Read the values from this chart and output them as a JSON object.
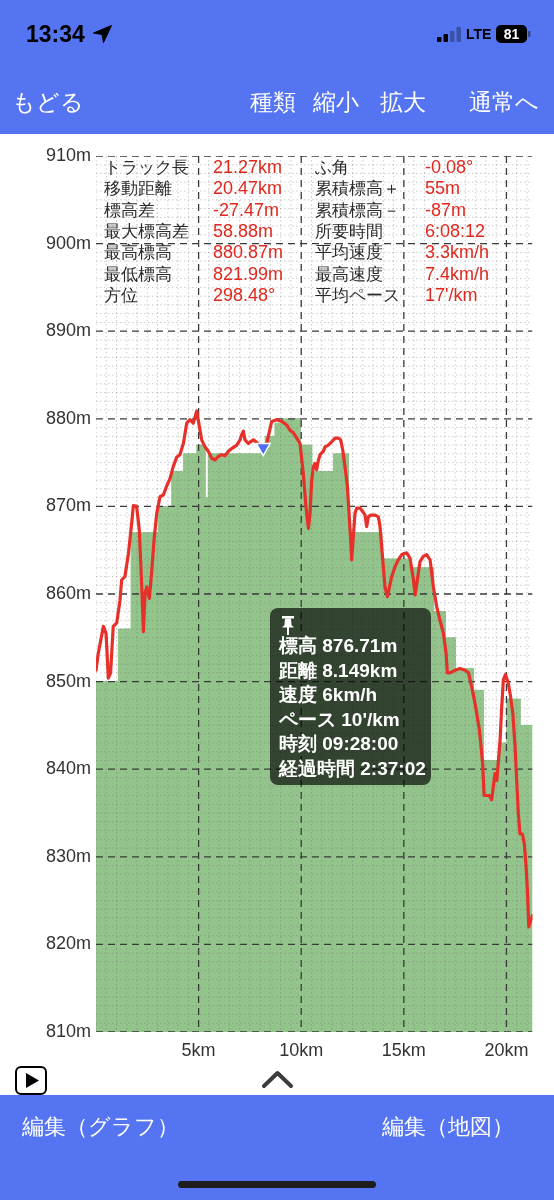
{
  "chart_data": {
    "type": "line",
    "xlim": [
      0,
      21.27
    ],
    "ylim": [
      810,
      910
    ],
    "xticks": [
      {
        "value": 0,
        "label": null
      },
      {
        "value": 0.5,
        "label": null
      },
      {
        "value": 1,
        "label": null
      },
      {
        "value": 1.5,
        "label": null
      },
      {
        "value": 2,
        "label": null
      },
      {
        "value": 2.5,
        "label": null
      },
      {
        "value": 3,
        "label": null
      },
      {
        "value": 3.5,
        "label": null
      },
      {
        "value": 4,
        "label": null
      },
      {
        "value": 4.5,
        "label": null
      },
      {
        "value": 5,
        "label": "5km"
      },
      {
        "value": 5.5,
        "label": null
      },
      {
        "value": 6,
        "label": null
      },
      {
        "value": 6.5,
        "label": null
      },
      {
        "value": 7,
        "label": null
      },
      {
        "value": 7.5,
        "label": null
      },
      {
        "value": 8,
        "label": null
      },
      {
        "value": 8.5,
        "label": null
      },
      {
        "value": 9,
        "label": null
      },
      {
        "value": 9.5,
        "label": null
      },
      {
        "value": 10,
        "label": "10km"
      },
      {
        "value": 10.5,
        "label": null
      },
      {
        "value": 11,
        "label": null
      },
      {
        "value": 11.5,
        "label": null
      },
      {
        "value": 12,
        "label": null
      },
      {
        "value": 12.5,
        "label": null
      },
      {
        "value": 13,
        "label": null
      },
      {
        "value": 13.5,
        "label": null
      },
      {
        "value": 14,
        "label": null
      },
      {
        "value": 14.5,
        "label": null
      },
      {
        "value": 15,
        "label": "15km"
      },
      {
        "value": 15.5,
        "label": null
      },
      {
        "value": 16,
        "label": null
      },
      {
        "value": 16.5,
        "label": null
      },
      {
        "value": 17,
        "label": null
      },
      {
        "value": 17.5,
        "label": null
      },
      {
        "value": 18,
        "label": null
      },
      {
        "value": 18.5,
        "label": null
      },
      {
        "value": 19,
        "label": null
      },
      {
        "value": 19.5,
        "label": null
      },
      {
        "value": 20,
        "label": "20km"
      },
      {
        "value": 20.5,
        "label": null
      },
      {
        "value": 21,
        "label": null
      }
    ],
    "yticks": [
      {
        "value": 810,
        "label": "810m"
      },
      {
        "value": 811,
        "label": null
      },
      {
        "value": 812,
        "label": null
      },
      {
        "value": 813,
        "label": null
      },
      {
        "value": 814,
        "label": null
      },
      {
        "value": 815,
        "label": null
      },
      {
        "value": 816,
        "label": null
      },
      {
        "value": 817,
        "label": null
      },
      {
        "value": 818,
        "label": null
      },
      {
        "value": 819,
        "label": null
      },
      {
        "value": 820,
        "label": "820m"
      },
      {
        "value": 821,
        "label": null
      },
      {
        "value": 822,
        "label": null
      },
      {
        "value": 823,
        "label": null
      },
      {
        "value": 824,
        "label": null
      },
      {
        "value": 825,
        "label": null
      },
      {
        "value": 826,
        "label": null
      },
      {
        "value": 827,
        "label": null
      },
      {
        "value": 828,
        "label": null
      },
      {
        "value": 829,
        "label": null
      },
      {
        "value": 830,
        "label": "830m"
      },
      {
        "value": 831,
        "label": null
      },
      {
        "value": 832,
        "label": null
      },
      {
        "value": 833,
        "label": null
      },
      {
        "value": 834,
        "label": null
      },
      {
        "value": 835,
        "label": null
      },
      {
        "value": 836,
        "label": null
      },
      {
        "value": 837,
        "label": null
      },
      {
        "value": 838,
        "label": null
      },
      {
        "value": 839,
        "label": null
      },
      {
        "value": 840,
        "label": "840m"
      },
      {
        "value": 841,
        "label": null
      },
      {
        "value": 842,
        "label": null
      },
      {
        "value": 843,
        "label": null
      },
      {
        "value": 844,
        "label": null
      },
      {
        "value": 845,
        "label": null
      },
      {
        "value": 846,
        "label": null
      },
      {
        "value": 847,
        "label": null
      },
      {
        "value": 848,
        "label": null
      },
      {
        "value": 849,
        "label": null
      },
      {
        "value": 850,
        "label": "850m"
      },
      {
        "value": 851,
        "label": null
      },
      {
        "value": 852,
        "label": null
      },
      {
        "value": 853,
        "label": null
      },
      {
        "value": 854,
        "label": null
      },
      {
        "value": 855,
        "label": null
      },
      {
        "value": 856,
        "label": null
      },
      {
        "value": 857,
        "label": null
      },
      {
        "value": 858,
        "label": null
      },
      {
        "value": 859,
        "label": null
      },
      {
        "value": 860,
        "label": "860m"
      },
      {
        "value": 861,
        "label": null
      },
      {
        "value": 862,
        "label": null
      },
      {
        "value": 863,
        "label": null
      },
      {
        "value": 864,
        "label": null
      },
      {
        "value": 865,
        "label": null
      },
      {
        "value": 866,
        "label": null
      },
      {
        "value": 867,
        "label": null
      },
      {
        "value": 868,
        "label": null
      },
      {
        "value": 869,
        "label": null
      },
      {
        "value": 870,
        "label": "870m"
      },
      {
        "value": 871,
        "label": null
      },
      {
        "value": 872,
        "label": null
      },
      {
        "value": 873,
        "label": null
      },
      {
        "value": 874,
        "label": null
      },
      {
        "value": 875,
        "label": null
      },
      {
        "value": 876,
        "label": null
      },
      {
        "value": 877,
        "label": null
      },
      {
        "value": 878,
        "label": null
      },
      {
        "value": 879,
        "label": null
      },
      {
        "value": 880,
        "label": "880m"
      },
      {
        "value": 881,
        "label": null
      },
      {
        "value": 882,
        "label": null
      },
      {
        "value": 883,
        "label": null
      },
      {
        "value": 884,
        "label": null
      },
      {
        "value": 885,
        "label": null
      },
      {
        "value": 886,
        "label": null
      },
      {
        "value": 887,
        "label": null
      },
      {
        "value": 888,
        "label": null
      },
      {
        "value": 889,
        "label": null
      },
      {
        "value": 890,
        "label": "890m"
      },
      {
        "value": 891,
        "label": null
      },
      {
        "value": 892,
        "label": null
      },
      {
        "value": 893,
        "label": null
      },
      {
        "value": 894,
        "label": null
      },
      {
        "value": 895,
        "label": null
      },
      {
        "value": 896,
        "label": null
      },
      {
        "value": 897,
        "label": null
      },
      {
        "value": 898,
        "label": null
      },
      {
        "value": 899,
        "label": null
      },
      {
        "value": 900,
        "label": "900m"
      },
      {
        "value": 901,
        "label": null
      },
      {
        "value": 902,
        "label": null
      },
      {
        "value": 903,
        "label": null
      },
      {
        "value": 904,
        "label": null
      },
      {
        "value": 905,
        "label": null
      },
      {
        "value": 906,
        "label": null
      },
      {
        "value": 907,
        "label": null
      },
      {
        "value": 908,
        "label": null
      },
      {
        "value": 909,
        "label": null
      },
      {
        "value": 910,
        "label": "910m"
      }
    ],
    "grid": true,
    "marker": "none",
    "series": [
      {
        "type": "area",
        "color": "#93c48b",
        "x": [
          0,
          1.09,
          1.09,
          1.71,
          1.71,
          3.04,
          3.04,
          3.69,
          3.69,
          4.26,
          4.26,
          4.91,
          4.91,
          5.31,
          5.31,
          5.47,
          5.47,
          8.24,
          8.24,
          8.72,
          8.72,
          9.05,
          9.05,
          9.94,
          9.94,
          10.51,
          10.51,
          11.57,
          11.57,
          12.3,
          12.3,
          13.92,
          13.92,
          15.3,
          15.3,
          16.44,
          16.44,
          17.01,
          17.01,
          17.5,
          17.5,
          18.39,
          18.39,
          18.88,
          18.88,
          19.61,
          19.61,
          20.01,
          20.01,
          20.66,
          20.66,
          21.27
        ],
        "values": [
          850,
          850,
          856,
          856,
          867,
          867,
          870,
          870,
          874,
          874,
          876,
          876,
          877,
          877,
          871,
          871,
          876,
          876,
          878,
          878,
          879.5,
          879.5,
          880,
          880,
          877,
          877,
          874,
          874,
          876,
          876,
          867,
          867,
          864,
          864,
          863,
          863,
          858,
          858,
          855,
          855,
          851.5,
          851.5,
          849,
          849,
          841,
          841,
          843,
          843,
          848,
          848,
          845,
          845
        ]
      },
      {
        "color": "#e8302a",
        "x": [
          0,
          0.11,
          0.36,
          0.49,
          0.6,
          0.71,
          0.84,
          1.01,
          1.17,
          1.25,
          1.41,
          1.58,
          1.74,
          1.82,
          1.98,
          2.11,
          2.23,
          2.31,
          2.39,
          2.47,
          2.6,
          2.71,
          2.83,
          2.96,
          3.12,
          3.28,
          3.44,
          3.61,
          3.77,
          3.93,
          4.09,
          4.26,
          4.42,
          4.58,
          4.74,
          4.91,
          5.04,
          5.15,
          5.31,
          5.47,
          5.64,
          5.8,
          5.96,
          6.12,
          6.29,
          6.45,
          6.61,
          6.86,
          7.02,
          7.1,
          7.18,
          7.26,
          7.42,
          7.67,
          8.15,
          8.32,
          8.56,
          8.8,
          9.05,
          9.29,
          9.45,
          9.62,
          9.78,
          9.94,
          10.1,
          10.23,
          10.35,
          10.43,
          10.51,
          10.59,
          10.67,
          10.75,
          10.84,
          10.92,
          11.08,
          11.16,
          11.32,
          11.49,
          11.65,
          11.81,
          11.92,
          12.02,
          12.13,
          12.25,
          12.35,
          12.41,
          12.46,
          12.54,
          12.62,
          12.7,
          12.87,
          13,
          13.11,
          13.19,
          13.27,
          13.39,
          13.6,
          13.76,
          13.84,
          13.92,
          14,
          14.08,
          14.2,
          14.3,
          14.41,
          14.57,
          14.73,
          14.9,
          15.14,
          15.3,
          15.47,
          15.55,
          15.66,
          15.79,
          15.95,
          16.11,
          16.28,
          16.44,
          16.6,
          16.76,
          16.93,
          17.06,
          17.12,
          17.25,
          17.5,
          17.74,
          17.98,
          18.15,
          18.31,
          18.47,
          18.55,
          18.68,
          18.75,
          18.84,
          18.91,
          19.04,
          19.17,
          19.28,
          19.36,
          19.44,
          19.53,
          19.61,
          19.69,
          19.77,
          19.85,
          19.95,
          20.09,
          20.18,
          20.31,
          20.42,
          20.5,
          20.58,
          20.66,
          20.78,
          20.87,
          20.96,
          21.02,
          21.09,
          21.18,
          21.27
        ],
        "values": [
          851.3,
          853.2,
          856.3,
          855.5,
          850.4,
          851,
          856.3,
          856.7,
          859.3,
          861.6,
          862,
          864.6,
          868.1,
          870.1,
          870,
          867.3,
          860.8,
          855.7,
          860.1,
          860.8,
          859.5,
          862.4,
          866.2,
          869.2,
          871.1,
          871.3,
          872.3,
          873.2,
          874.6,
          875.6,
          875.9,
          877.2,
          879.5,
          879.9,
          879.5,
          880.9,
          879.1,
          877.6,
          876.8,
          876.3,
          875.5,
          875.3,
          875.7,
          875.9,
          875.8,
          876.3,
          876.6,
          877,
          877.6,
          878.2,
          878.6,
          877.6,
          877.2,
          877.6,
          876.7,
          877.2,
          879.7,
          879.9,
          879.7,
          879.3,
          878.7,
          878.4,
          877.8,
          877.2,
          873.8,
          870,
          867.5,
          869.2,
          873,
          874.5,
          874.9,
          874.2,
          875.3,
          875.9,
          876.3,
          876.8,
          877,
          877.4,
          877.8,
          877.8,
          877.6,
          876.5,
          874.6,
          872.3,
          868.5,
          866.2,
          863.9,
          866.6,
          869.2,
          869.8,
          869.8,
          869.4,
          869,
          867.7,
          868.8,
          869,
          869,
          868.8,
          867.7,
          865.4,
          863.1,
          860.8,
          859.7,
          860.8,
          862,
          863.1,
          863.9,
          864.5,
          864.7,
          864.1,
          861.6,
          859.9,
          861.6,
          863.7,
          864.3,
          864.5,
          863.9,
          860.8,
          858.6,
          857,
          855.5,
          853.2,
          851,
          851,
          851.3,
          851.5,
          851.3,
          851,
          849.4,
          847.5,
          846.4,
          844.5,
          842.9,
          840.6,
          837,
          837,
          837,
          836.5,
          838,
          839.5,
          838.7,
          841,
          843.3,
          847.1,
          850.2,
          850.8,
          849.8,
          848.6,
          846.4,
          842.6,
          838.7,
          834.9,
          832.6,
          832.6,
          831.5,
          828.8,
          826.2,
          822,
          822.7,
          823.3
        ]
      },
      {
        "type": "scatter",
        "color": "#4f6ef5",
        "marker": "triangle",
        "x": [
          8.149
        ],
        "values": [
          876.71
        ]
      }
    ],
    "annotations": [
      "13:34",
      "LTE",
      "81",
      "もどる",
      "種類",
      "縮小",
      "拡大",
      "通常へ",
      "トラック長",
      "21.27km",
      "ふ角",
      "-0.08°",
      "移動距離",
      "20.47km",
      "累積標高＋",
      "55m",
      "標高差",
      "-27.47m",
      "累積標高－",
      "-87m",
      "最大標高差",
      "58.88m",
      "所要時間",
      "6:08:12",
      "最高標高",
      "880.87m",
      "平均速度",
      "3.3km/h",
      "最低標高",
      "821.99m",
      "最高速度",
      "7.4km/h",
      "方位",
      "298.48°",
      "平均ペース",
      "17'/km",
      "標高 876.71m\n距離 8.149km\n速度 6km/h\nペース 10'/km\n時刻 09:28:00\n経過時間 2:37:02",
      "編集（グラフ）",
      "編集（地図）"
    ]
  }
}
